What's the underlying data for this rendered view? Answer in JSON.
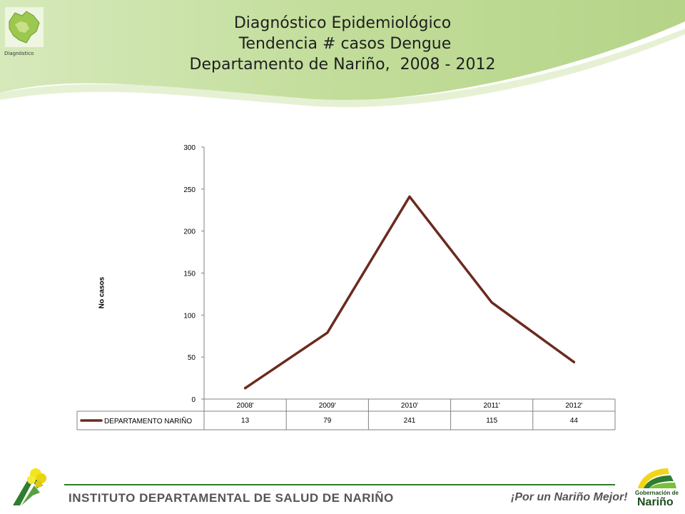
{
  "header": {
    "title_lines": [
      "Diagnóstico Epidemiológico",
      " Tendencia # casos Dengue",
      "Departamento de Nariño,  2008 - 2012"
    ],
    "logo_caption": "Diagnóstico"
  },
  "chart_data": {
    "type": "line",
    "categories": [
      "2008'",
      "2009'",
      "2010'",
      "2011'",
      "2012'"
    ],
    "series": [
      {
        "name": "DEPARTAMENTO NARIÑO",
        "values": [
          13,
          79,
          241,
          115,
          44
        ],
        "color": "#6b2a1e"
      }
    ],
    "ylabel": "No casos",
    "ylim": [
      0,
      300
    ],
    "yticks": [
      0,
      50,
      100,
      150,
      200,
      250,
      300
    ],
    "grid": false,
    "legend": "data-table-below"
  },
  "footer": {
    "institute": "INSTITUTO DEPARTAMENTAL DE SALUD DE NARIÑO",
    "slogan": "¡Por un Nariño Mejor!",
    "logo_line1": "Gobernación de",
    "logo_line2": "Nariño"
  },
  "colors": {
    "header_green": "#c5dfa0",
    "footer_green": "#2f7d2f",
    "series_line": "#6b2a1e"
  }
}
